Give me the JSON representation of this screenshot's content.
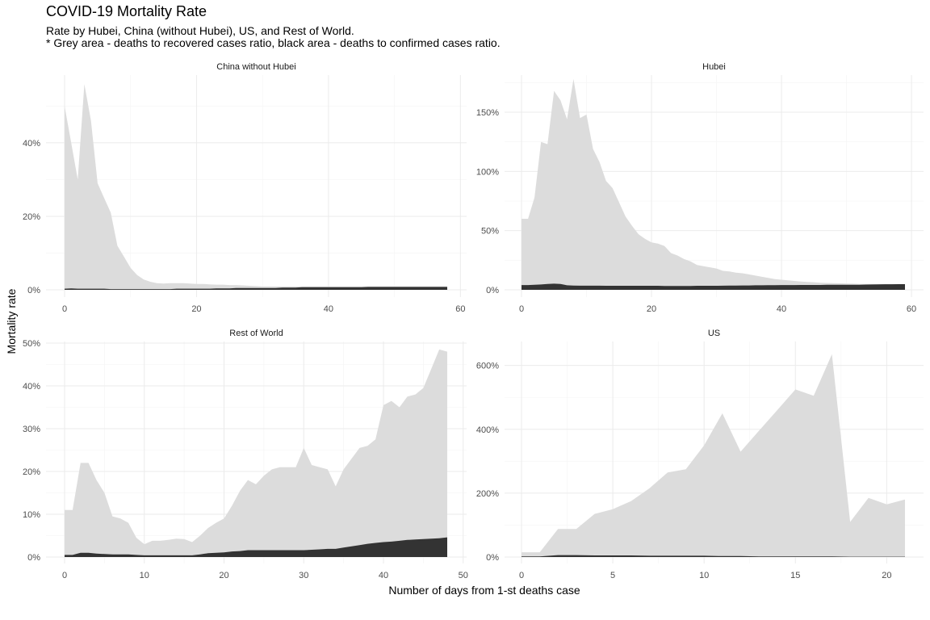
{
  "title": "COVID-19 Mortality Rate",
  "subtitle_line1": "Rate by Hubei, China (without Hubei), US, and Rest of World.",
  "subtitle_line2": "* Grey area - deaths to recovered cases ratio, black area - deaths to confirmed cases ratio.",
  "xlabel": "Number of days from 1-st deaths case",
  "ylabel": "Mortality rate",
  "colors": {
    "recovered_area": "#dcdcdc",
    "confirmed_area": "#333333",
    "grid_major": "#ebebeb",
    "grid_minor": "#f4f4f4"
  },
  "chart_data": [
    {
      "type": "area",
      "title": "China without Hubei",
      "xlim": [
        0,
        58
      ],
      "ylim": [
        0,
        0.58
      ],
      "xticks": [
        0,
        20,
        40,
        60
      ],
      "xtick_labels": [
        "0",
        "20",
        "40",
        "60"
      ],
      "yticks": [
        0,
        0.2,
        0.4
      ],
      "ytick_labels": [
        "0%",
        "20%",
        "40%"
      ],
      "x": [
        0,
        1,
        2,
        3,
        4,
        5,
        6,
        7,
        8,
        9,
        10,
        11,
        12,
        13,
        14,
        15,
        16,
        17,
        18,
        19,
        20,
        21,
        22,
        23,
        24,
        25,
        26,
        27,
        28,
        29,
        30,
        31,
        32,
        33,
        34,
        35,
        36,
        37,
        38,
        39,
        40,
        41,
        42,
        43,
        44,
        45,
        46,
        47,
        48,
        49,
        50,
        51,
        52,
        53,
        54,
        55,
        56,
        57,
        58
      ],
      "series": [
        {
          "values": [
            0.5,
            0.4,
            0.3,
            0.56,
            0.46,
            0.29,
            0.25,
            0.21,
            0.12,
            0.09,
            0.06,
            0.04,
            0.028,
            0.022,
            0.018,
            0.017,
            0.018,
            0.018,
            0.018,
            0.017,
            0.016,
            0.016,
            0.015,
            0.014,
            0.014,
            0.013,
            0.013,
            0.012,
            0.011,
            0.01,
            0.009,
            0.009,
            0.009,
            0.009,
            0.009,
            0.009,
            0.009,
            0.009,
            0.009,
            0.009,
            0.009,
            0.009,
            0.009,
            0.009,
            0.009,
            0.009,
            0.009,
            0.009,
            0.009,
            0.009,
            0.009,
            0.009,
            0.009,
            0.009,
            0.009,
            0.009,
            0.009,
            0.009,
            0.009
          ]
        },
        {
          "values": [
            0.003,
            0.004,
            0.003,
            0.003,
            0.003,
            0.003,
            0.003,
            0.002,
            0.002,
            0.002,
            0.002,
            0.002,
            0.002,
            0.002,
            0.002,
            0.002,
            0.002,
            0.003,
            0.003,
            0.003,
            0.003,
            0.003,
            0.003,
            0.004,
            0.004,
            0.004,
            0.005,
            0.005,
            0.005,
            0.005,
            0.005,
            0.005,
            0.005,
            0.006,
            0.006,
            0.006,
            0.007,
            0.007,
            0.007,
            0.007,
            0.007,
            0.007,
            0.007,
            0.007,
            0.007,
            0.007,
            0.008,
            0.008,
            0.008,
            0.008,
            0.008,
            0.008,
            0.008,
            0.008,
            0.008,
            0.008,
            0.008,
            0.008,
            0.008
          ]
        }
      ]
    },
    {
      "type": "area",
      "title": "Hubei",
      "xlim": [
        0,
        59
      ],
      "ylim": [
        0,
        1.8
      ],
      "xticks": [
        0,
        20,
        40,
        60
      ],
      "xtick_labels": [
        "0",
        "20",
        "40",
        "60"
      ],
      "yticks": [
        0,
        0.5,
        1.0,
        1.5
      ],
      "ytick_labels": [
        "0%",
        "50%",
        "100%",
        "150%"
      ],
      "x": [
        0,
        1,
        2,
        3,
        4,
        5,
        6,
        7,
        8,
        9,
        10,
        11,
        12,
        13,
        14,
        15,
        16,
        17,
        18,
        19,
        20,
        21,
        22,
        23,
        24,
        25,
        26,
        27,
        28,
        29,
        30,
        31,
        32,
        33,
        34,
        35,
        36,
        37,
        38,
        39,
        40,
        41,
        42,
        43,
        44,
        45,
        46,
        47,
        48,
        49,
        50,
        51,
        52,
        53,
        54,
        55,
        56,
        57,
        58,
        59
      ],
      "series": [
        {
          "values": [
            0.6,
            0.6,
            0.78,
            1.25,
            1.23,
            1.68,
            1.6,
            1.44,
            1.78,
            1.45,
            1.48,
            1.19,
            1.08,
            0.92,
            0.86,
            0.74,
            0.62,
            0.54,
            0.47,
            0.43,
            0.4,
            0.39,
            0.37,
            0.31,
            0.29,
            0.26,
            0.24,
            0.21,
            0.2,
            0.19,
            0.18,
            0.16,
            0.155,
            0.145,
            0.14,
            0.13,
            0.12,
            0.11,
            0.1,
            0.09,
            0.085,
            0.08,
            0.075,
            0.07,
            0.067,
            0.064,
            0.06,
            0.058,
            0.056,
            0.055,
            0.053,
            0.052,
            0.05,
            0.05,
            0.05,
            0.05,
            0.05,
            0.05,
            0.05,
            0.05
          ]
        },
        {
          "values": [
            0.04,
            0.04,
            0.042,
            0.045,
            0.05,
            0.052,
            0.05,
            0.038,
            0.036,
            0.035,
            0.035,
            0.035,
            0.035,
            0.034,
            0.034,
            0.034,
            0.034,
            0.034,
            0.034,
            0.034,
            0.034,
            0.034,
            0.033,
            0.033,
            0.033,
            0.033,
            0.033,
            0.034,
            0.034,
            0.034,
            0.034,
            0.035,
            0.036,
            0.036,
            0.037,
            0.037,
            0.038,
            0.038,
            0.039,
            0.039,
            0.04,
            0.04,
            0.04,
            0.041,
            0.041,
            0.041,
            0.041,
            0.042,
            0.042,
            0.042,
            0.042,
            0.043,
            0.043,
            0.044,
            0.045,
            0.046,
            0.047,
            0.047,
            0.048,
            0.048
          ]
        }
      ]
    },
    {
      "type": "area",
      "title": "Rest of World",
      "xlim": [
        0,
        48
      ],
      "ylim": [
        0,
        0.5
      ],
      "xticks": [
        0,
        10,
        20,
        30,
        40,
        50
      ],
      "xtick_labels": [
        "0",
        "10",
        "20",
        "30",
        "40",
        "50"
      ],
      "yticks": [
        0,
        0.1,
        0.2,
        0.3,
        0.4,
        0.5
      ],
      "ytick_labels": [
        "0%",
        "10%",
        "20%",
        "30%",
        "40%",
        "50%"
      ],
      "x": [
        0,
        1,
        2,
        3,
        4,
        5,
        6,
        7,
        8,
        9,
        10,
        11,
        12,
        13,
        14,
        15,
        16,
        17,
        18,
        19,
        20,
        21,
        22,
        23,
        24,
        25,
        26,
        27,
        28,
        29,
        30,
        31,
        32,
        33,
        34,
        35,
        36,
        37,
        38,
        39,
        40,
        41,
        42,
        43,
        44,
        45,
        46,
        47,
        48
      ],
      "series": [
        {
          "values": [
            0.11,
            0.11,
            0.22,
            0.22,
            0.18,
            0.15,
            0.095,
            0.09,
            0.08,
            0.045,
            0.03,
            0.038,
            0.038,
            0.04,
            0.043,
            0.042,
            0.035,
            0.05,
            0.068,
            0.08,
            0.09,
            0.12,
            0.155,
            0.18,
            0.17,
            0.19,
            0.205,
            0.21,
            0.21,
            0.21,
            0.255,
            0.215,
            0.21,
            0.205,
            0.165,
            0.205,
            0.23,
            0.255,
            0.26,
            0.275,
            0.355,
            0.365,
            0.35,
            0.375,
            0.38,
            0.395,
            0.44,
            0.485,
            0.48
          ]
        },
        {
          "values": [
            0.005,
            0.005,
            0.01,
            0.01,
            0.008,
            0.007,
            0.006,
            0.006,
            0.006,
            0.005,
            0.004,
            0.004,
            0.004,
            0.004,
            0.004,
            0.004,
            0.004,
            0.006,
            0.009,
            0.01,
            0.011,
            0.013,
            0.014,
            0.016,
            0.016,
            0.016,
            0.016,
            0.016,
            0.016,
            0.016,
            0.016,
            0.017,
            0.018,
            0.019,
            0.019,
            0.022,
            0.025,
            0.028,
            0.031,
            0.033,
            0.035,
            0.036,
            0.038,
            0.04,
            0.041,
            0.042,
            0.043,
            0.044,
            0.046
          ]
        }
      ]
    },
    {
      "type": "area",
      "title": "US",
      "xlim": [
        0,
        21
      ],
      "ylim": [
        0,
        6.7
      ],
      "xticks": [
        0,
        5,
        10,
        15,
        20
      ],
      "xtick_labels": [
        "0",
        "5",
        "10",
        "15",
        "20"
      ],
      "yticks": [
        0,
        2,
        4,
        6
      ],
      "ytick_labels": [
        "0%",
        "200%",
        "400%",
        "600%"
      ],
      "x": [
        0,
        1,
        2,
        3,
        4,
        5,
        6,
        7,
        8,
        9,
        10,
        11,
        12,
        13,
        14,
        15,
        16,
        17,
        18,
        19,
        20,
        21
      ],
      "series": [
        {
          "values": [
            0.15,
            0.15,
            0.88,
            0.88,
            1.35,
            1.5,
            1.75,
            2.15,
            2.65,
            2.75,
            3.5,
            4.5,
            3.3,
            3.95,
            4.6,
            5.25,
            5.05,
            6.35,
            1.1,
            1.85,
            1.65,
            1.8
          ]
        },
        {
          "values": [
            0.02,
            0.02,
            0.06,
            0.06,
            0.05,
            0.05,
            0.05,
            0.04,
            0.04,
            0.04,
            0.04,
            0.03,
            0.03,
            0.02,
            0.02,
            0.02,
            0.02,
            0.02,
            0.01,
            0.01,
            0.01,
            0.01
          ]
        }
      ]
    }
  ]
}
